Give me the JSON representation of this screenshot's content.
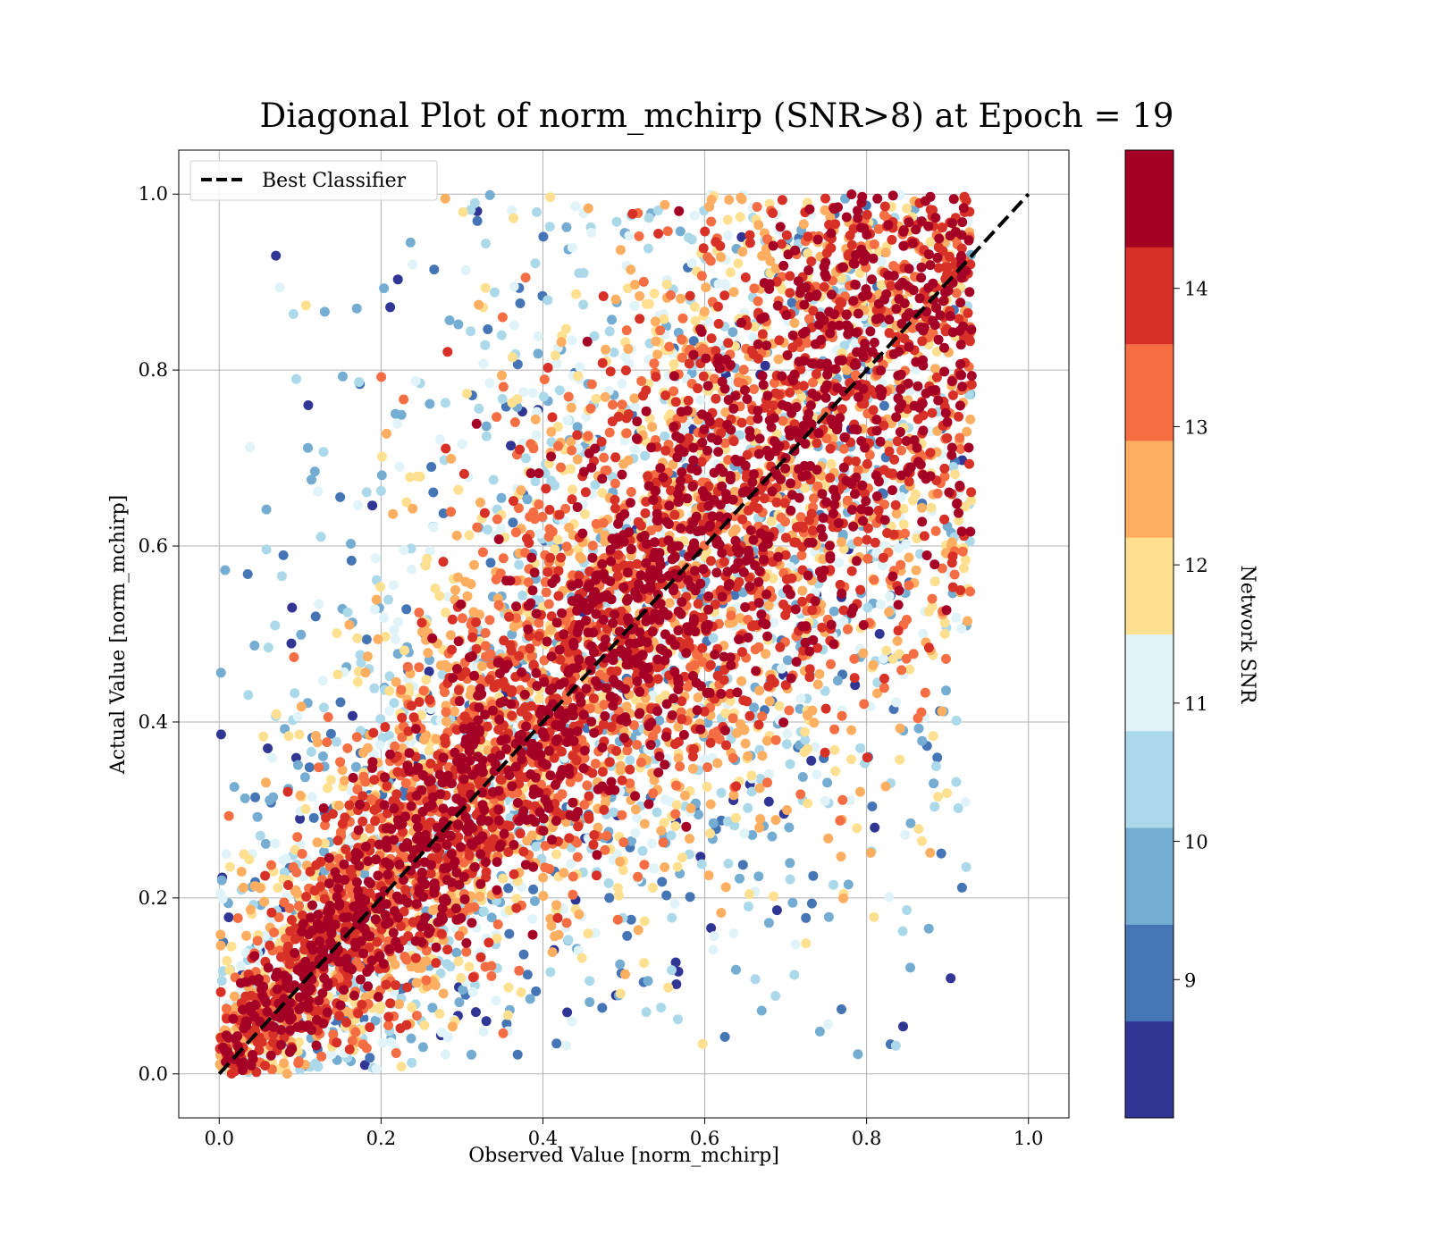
{
  "chart_data": {
    "type": "scatter",
    "title": "Diagonal Plot of norm_mchirp (SNR>8) at Epoch = 19",
    "xlabel": "Observed Value [norm_mchirp]",
    "ylabel": "Actual Value [norm_mchirp]",
    "xlim": [
      -0.05,
      1.05
    ],
    "ylim": [
      -0.05,
      1.05
    ],
    "x_ticks": [
      "0.0",
      "0.2",
      "0.4",
      "0.6",
      "0.8",
      "1.0"
    ],
    "y_ticks": [
      "0.0",
      "0.2",
      "0.4",
      "0.6",
      "0.8",
      "1.0"
    ],
    "grid": true,
    "legend": {
      "placement": "upper-left",
      "entries": [
        "Best Classifier"
      ]
    },
    "reference_line": {
      "name": "Best Classifier",
      "style": "dashed",
      "color": "#000000",
      "x": [
        0,
        1
      ],
      "y": [
        0,
        1
      ]
    },
    "colorbar": {
      "label": "Network SNR",
      "min": 8.0,
      "max": 15.0,
      "ticks": [
        "9",
        "10",
        "11",
        "12",
        "13",
        "14"
      ],
      "tick_values": [
        9,
        10,
        11,
        12,
        13,
        14
      ],
      "colors": [
        "#313695",
        "#4575b4",
        "#74add1",
        "#abd9e9",
        "#e0f3f8",
        "#fee090",
        "#fdae61",
        "#f46d43",
        "#d73027",
        "#a50026"
      ]
    },
    "series": [
      {
        "points_note": "dense band along y = x, spread roughly ±0.25, colored by Network SNR",
        "sample_points": [
          {
            "x": 0.07,
            "y": 0.93,
            "snr": 8.3
          },
          {
            "x": 0.18,
            "y": 0.01,
            "snr": 8.3
          },
          {
            "x": 0.33,
            "y": 0.06,
            "snr": 8.3
          },
          {
            "x": 0.43,
            "y": 0.07,
            "snr": 8.3
          },
          {
            "x": 0.81,
            "y": 0.28,
            "snr": 8.3
          },
          {
            "x": 0.17,
            "y": 0.87,
            "snr": 9.5
          },
          {
            "x": 0.09,
            "y": 0.53,
            "snr": 8.3
          },
          {
            "x": 0.06,
            "y": 0.37,
            "snr": 8.3
          },
          {
            "x": 0.11,
            "y": 0.76,
            "snr": 8.3
          },
          {
            "x": 0.5,
            "y": 0.5,
            "snr": 14.8
          },
          {
            "x": 0.7,
            "y": 0.7,
            "snr": 14.8
          },
          {
            "x": 0.3,
            "y": 0.3,
            "snr": 14.8
          }
        ]
      }
    ]
  }
}
